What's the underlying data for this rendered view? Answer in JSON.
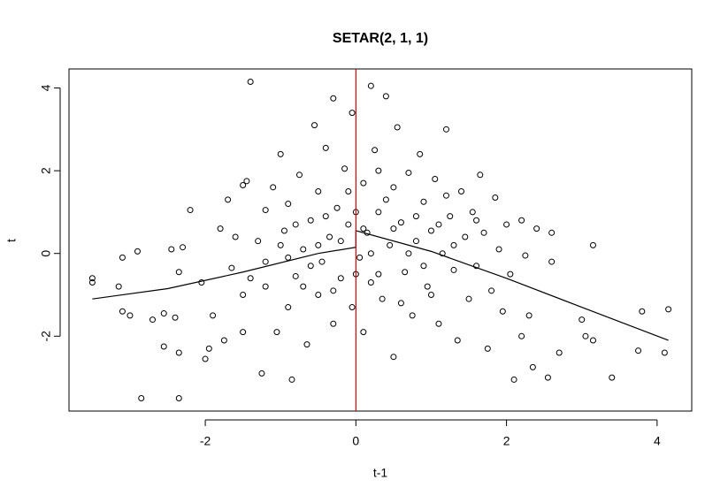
{
  "chart_data": {
    "type": "scatter",
    "title": "SETAR(2, 1, 1)",
    "x_label": "t-1",
    "y_label": "t",
    "xlim": [
      -3.81,
      4.46
    ],
    "ylim": [
      -3.81,
      4.46
    ],
    "xticks": [
      -2,
      0,
      2,
      4
    ],
    "yticks": [
      -2,
      0,
      2,
      4
    ],
    "grid": false,
    "color": "#000000",
    "x": [
      -3.5,
      -3.5,
      -3.1,
      -3.15,
      -3.1,
      -3.0,
      -2.9,
      -2.85,
      -2.7,
      -2.55,
      -2.55,
      -2.45,
      -2.4,
      -2.35,
      -2.35,
      -2.3,
      -2.35,
      -2.2,
      -2.05,
      -2.0,
      -1.95,
      -1.9,
      -1.8,
      -1.75,
      -1.7,
      -1.65,
      -1.5,
      -1.45,
      -1.5,
      -1.5,
      -1.4,
      -1.3,
      -1.25,
      -1.2,
      -1.2,
      -1.1,
      -1.05,
      -1.0,
      -0.95,
      -0.9,
      -0.9,
      -0.85,
      -0.8,
      -0.75,
      -0.7,
      -0.65,
      -0.6,
      -0.55,
      -0.5,
      -0.5,
      -0.45,
      -0.4,
      -0.35,
      -0.3,
      -0.3,
      -0.25,
      -0.2,
      -0.15,
      -0.1,
      -0.05,
      -0.05,
      0.05,
      0.1,
      0.1,
      0.15,
      0.2,
      0.2,
      0.25,
      0.3,
      0.35,
      0.4,
      0.45,
      0.5,
      0.5,
      0.55,
      0.6,
      0.65,
      0.7,
      0.75,
      0.8,
      0.85,
      0.9,
      0.95,
      1.0,
      1.05,
      1.1,
      1.15,
      1.2,
      1.25,
      1.3,
      1.35,
      1.4,
      1.45,
      1.5,
      1.55,
      1.6,
      1.65,
      1.7,
      1.75,
      1.8,
      1.85,
      1.9,
      1.95,
      2.0,
      2.05,
      2.1,
      2.2,
      2.2,
      2.25,
      2.3,
      2.35,
      2.4,
      2.55,
      2.6,
      2.6,
      2.7,
      3.0,
      3.05,
      3.15,
      3.15,
      3.4,
      3.75,
      3.8,
      4.1,
      4.15,
      -1.2,
      -1.0,
      -0.8,
      -0.6,
      -0.4,
      -0.2,
      0.0,
      0.2,
      0.3,
      0.5,
      0.7,
      0.9,
      1.1,
      1.3,
      0.4,
      -0.3,
      0.6,
      -0.7,
      1.0,
      0.0,
      -1.4,
      -1.6,
      1.6,
      0.8,
      -0.1,
      0.3,
      1.2,
      -0.9,
      0.1,
      -0.5
    ],
    "y": [
      -0.6,
      -0.7,
      -0.1,
      -0.8,
      -1.4,
      -1.5,
      0.05,
      -3.5,
      -1.6,
      -1.45,
      -2.25,
      0.1,
      -1.55,
      -2.4,
      -3.5,
      0.15,
      -0.45,
      1.05,
      -0.7,
      -2.55,
      -2.3,
      -1.5,
      0.6,
      -2.1,
      1.3,
      -0.35,
      1.65,
      1.75,
      -1.9,
      -1.0,
      4.15,
      0.3,
      -2.9,
      1.05,
      -0.8,
      1.6,
      -1.9,
      2.4,
      0.55,
      -1.3,
      1.2,
      -3.05,
      -0.55,
      1.9,
      0.1,
      -2.2,
      0.8,
      3.1,
      -1.0,
      1.5,
      -0.2,
      2.55,
      0.4,
      3.75,
      -1.7,
      1.1,
      -0.6,
      2.05,
      0.7,
      -1.3,
      3.4,
      -0.1,
      1.7,
      -1.9,
      0.5,
      4.05,
      -0.7,
      2.5,
      1.0,
      -1.1,
      3.8,
      0.2,
      1.6,
      -2.5,
      3.05,
      0.75,
      -0.45,
      1.95,
      -1.5,
      0.3,
      2.4,
      1.25,
      -0.8,
      0.55,
      1.8,
      -1.7,
      0.0,
      3.0,
      0.9,
      -0.4,
      -2.1,
      1.5,
      0.4,
      -1.1,
      1.0,
      -0.3,
      1.9,
      0.5,
      -2.3,
      -0.9,
      1.35,
      0.1,
      -1.4,
      0.7,
      -0.5,
      -3.05,
      0.8,
      -2.0,
      -0.05,
      -1.5,
      -2.75,
      0.6,
      -3.0,
      0.5,
      -0.2,
      -2.4,
      -1.6,
      -2.0,
      0.2,
      -2.1,
      -3.0,
      -2.35,
      -1.4,
      -2.4,
      -1.35,
      -0.2,
      0.2,
      0.7,
      -0.3,
      0.9,
      0.3,
      1.0,
      0.0,
      -0.5,
      0.6,
      0.0,
      -0.3,
      0.7,
      0.2,
      1.3,
      -0.9,
      -1.2,
      -0.8,
      -1.0,
      -0.5,
      -0.6,
      0.4,
      0.8,
      0.9,
      1.5,
      2.0,
      1.4,
      -0.1,
      0.6,
      0.2
    ],
    "fit": {
      "color": "#000000",
      "x": [
        -3.5,
        -2.5,
        -1.5,
        -0.5,
        0,
        0,
        1,
        2,
        3,
        4.15
      ],
      "y": [
        -1.1,
        -0.85,
        -0.45,
        0.0,
        0.15,
        0.55,
        0.05,
        -0.6,
        -1.3,
        -2.1
      ]
    },
    "threshold": 0,
    "threshold_color": "#cc0000"
  }
}
